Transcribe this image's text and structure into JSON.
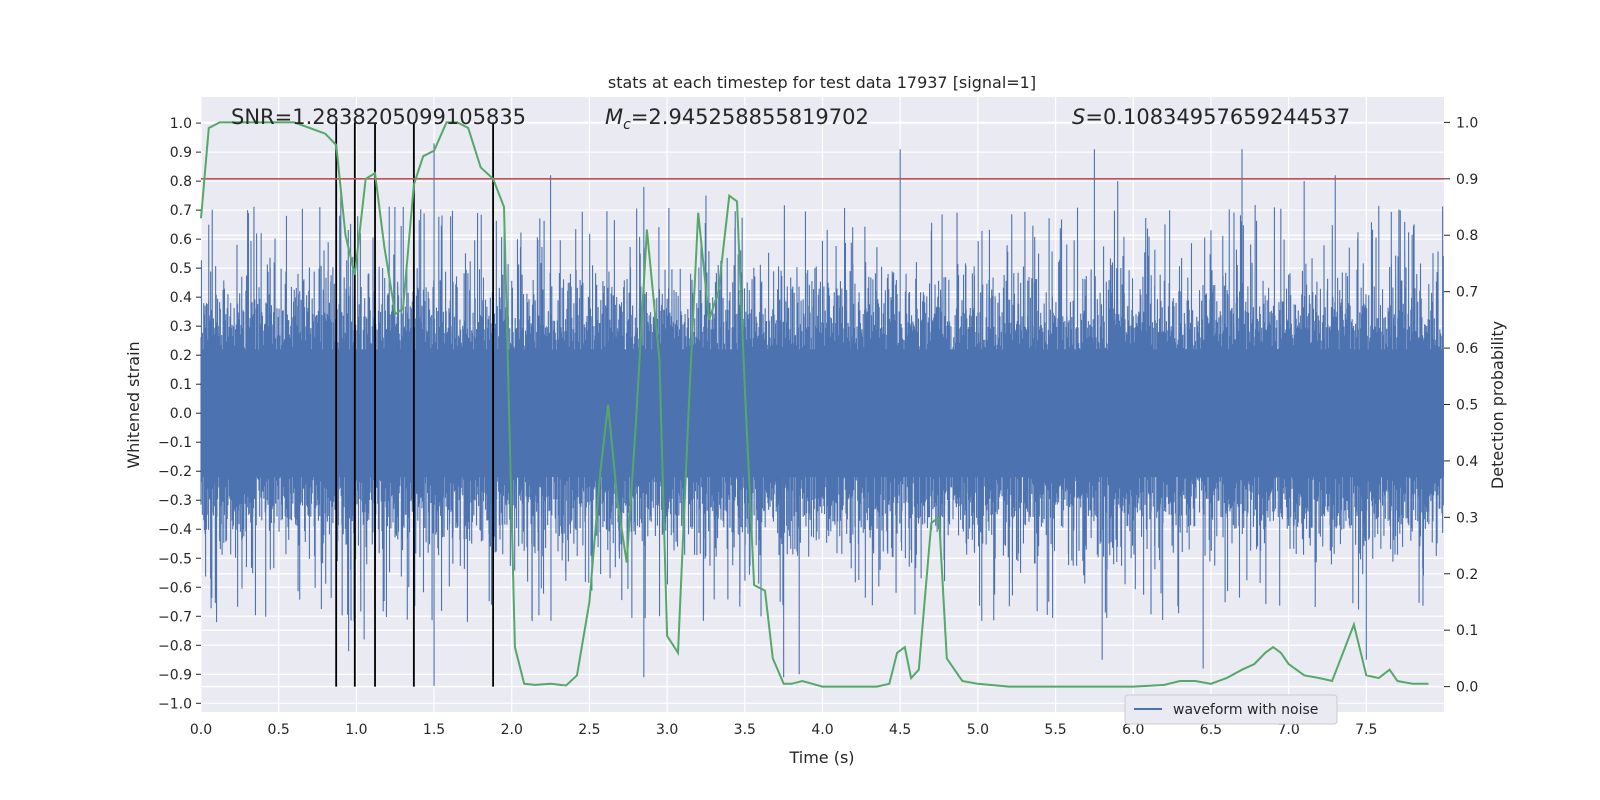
{
  "chart_data": {
    "type": "line",
    "title": "stats at each timestep for test data 17937 [signal=1]",
    "xlabel": "Time (s)",
    "ylabel_left": "Whitened strain",
    "ylabel_right": "Detection probability",
    "xlim": [
      0.0,
      8.0
    ],
    "ylim_left": [
      -1.03,
      1.09
    ],
    "ylim_right": [
      -0.045,
      1.045
    ],
    "x_ticks": [
      "0.0",
      "0.5",
      "1.0",
      "1.5",
      "2.0",
      "2.5",
      "3.0",
      "3.5",
      "4.0",
      "4.5",
      "5.0",
      "5.5",
      "6.0",
      "6.5",
      "7.0",
      "7.5"
    ],
    "y_ticks_left": [
      "1.0",
      "0.9",
      "0.8",
      "0.7",
      "0.6",
      "0.5",
      "0.4",
      "0.3",
      "0.2",
      "0.1",
      "0.0",
      "−0.1",
      "−0.2",
      "−0.3",
      "−0.4",
      "−0.5",
      "−0.6",
      "−0.7",
      "−0.8",
      "−0.9",
      "−1.0"
    ],
    "y_ticks_right": [
      "1.0",
      "0.9",
      "0.8",
      "0.7",
      "0.6",
      "0.5",
      "0.4",
      "0.3",
      "0.2",
      "0.1",
      "0.0"
    ],
    "annotations": {
      "snr": "SNR=1.2838205099105835",
      "mc_symbol": "M",
      "mc_sub": "c",
      "mc_value": "=2.945258855819702",
      "s_symbol": "S",
      "s_value": "=0.10834957659244537"
    },
    "threshold": {
      "y_right": 0.9,
      "color": "#c44e52"
    },
    "vertical_lines": {
      "x": [
        0.87,
        0.99,
        1.12,
        1.37,
        1.88
      ],
      "color": "#000000"
    },
    "waveform": {
      "name": "waveform with noise",
      "color": "#4c72b0",
      "band_abs": 0.4,
      "peaks_pos": [
        [
          0.05,
          0.65
        ],
        [
          0.3,
          0.7
        ],
        [
          0.55,
          0.68
        ],
        [
          0.9,
          0.78
        ],
        [
          1.12,
          0.87
        ],
        [
          1.37,
          1.0
        ],
        [
          1.5,
          0.93
        ],
        [
          2.25,
          0.82
        ],
        [
          2.85,
          0.78
        ],
        [
          3.25,
          0.75
        ],
        [
          4.5,
          0.91
        ],
        [
          5.75,
          0.91
        ],
        [
          5.9,
          0.8
        ],
        [
          6.7,
          0.91
        ],
        [
          7.1,
          0.8
        ],
        [
          7.3,
          0.82
        ]
      ],
      "peaks_neg": [
        [
          0.1,
          -0.72
        ],
        [
          0.95,
          -0.82
        ],
        [
          1.05,
          -0.78
        ],
        [
          1.5,
          -0.94
        ],
        [
          2.85,
          -0.91
        ],
        [
          3.75,
          -0.91
        ],
        [
          3.85,
          -0.9
        ],
        [
          5.8,
          -0.85
        ],
        [
          6.45,
          -0.88
        ],
        [
          7.5,
          -0.85
        ]
      ]
    },
    "probability": {
      "color": "#55a868",
      "x": [
        0.0,
        0.05,
        0.12,
        0.2,
        0.3,
        0.45,
        0.6,
        0.7,
        0.8,
        0.87,
        0.93,
        0.99,
        1.06,
        1.12,
        1.18,
        1.25,
        1.3,
        1.37,
        1.43,
        1.5,
        1.58,
        1.65,
        1.72,
        1.8,
        1.88,
        1.95,
        2.02,
        2.08,
        2.15,
        2.25,
        2.35,
        2.42,
        2.5,
        2.57,
        2.62,
        2.68,
        2.74,
        2.8,
        2.87,
        2.95,
        3.0,
        3.07,
        3.14,
        3.2,
        3.27,
        3.33,
        3.4,
        3.45,
        3.5,
        3.56,
        3.63,
        3.68,
        3.75,
        3.8,
        3.87,
        4.0,
        4.2,
        4.35,
        4.43,
        4.48,
        4.53,
        4.57,
        4.62,
        4.7,
        4.75,
        4.8,
        4.9,
        5.0,
        5.2,
        5.5,
        5.8,
        6.0,
        6.2,
        6.3,
        6.4,
        6.5,
        6.6,
        6.7,
        6.78,
        6.85,
        6.9,
        6.95,
        7.0,
        7.1,
        7.2,
        7.28,
        7.35,
        7.42,
        7.5,
        7.58,
        7.65,
        7.7,
        7.8,
        7.9
      ],
      "y": [
        0.83,
        0.99,
        1.0,
        1.0,
        1.0,
        1.0,
        1.0,
        0.99,
        0.98,
        0.96,
        0.8,
        0.73,
        0.9,
        0.91,
        0.78,
        0.66,
        0.67,
        0.89,
        0.94,
        0.95,
        1.0,
        1.0,
        0.99,
        0.92,
        0.9,
        0.85,
        0.07,
        0.005,
        0.003,
        0.005,
        0.002,
        0.02,
        0.15,
        0.38,
        0.5,
        0.33,
        0.22,
        0.47,
        0.81,
        0.58,
        0.09,
        0.06,
        0.5,
        0.84,
        0.65,
        0.7,
        0.87,
        0.86,
        0.53,
        0.18,
        0.17,
        0.05,
        0.005,
        0.005,
        0.01,
        0.0,
        0.0,
        0.0,
        0.005,
        0.06,
        0.07,
        0.015,
        0.03,
        0.29,
        0.3,
        0.05,
        0.01,
        0.005,
        0.0,
        0.0,
        0.0,
        0.0,
        0.003,
        0.01,
        0.01,
        0.005,
        0.015,
        0.03,
        0.04,
        0.06,
        0.07,
        0.06,
        0.04,
        0.02,
        0.015,
        0.01,
        0.06,
        0.11,
        0.02,
        0.015,
        0.03,
        0.01,
        0.005,
        0.005
      ]
    },
    "legend": {
      "placement": "lower-right",
      "entries": [
        "waveform with noise"
      ]
    }
  }
}
